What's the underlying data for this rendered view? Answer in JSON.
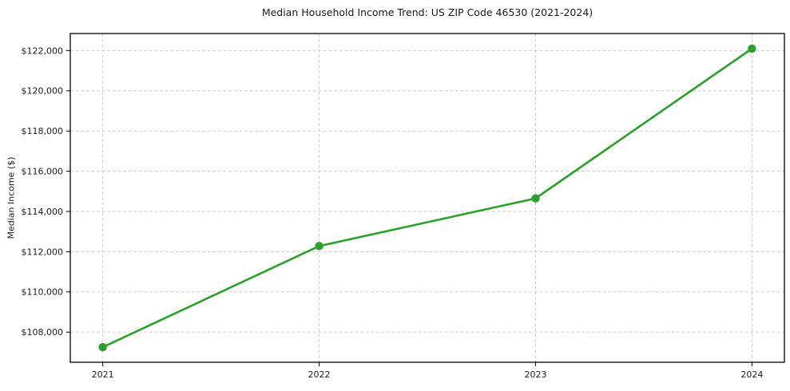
{
  "figure": {
    "background": "#ffffff"
  },
  "chart_data": {
    "type": "line",
    "title": "Median Household Income Trend: US ZIP Code 46530 (2021-2024)",
    "xlabel": "",
    "ylabel": "Median Income ($)",
    "x": [
      2021,
      2022,
      2023,
      2024
    ],
    "categories": [
      "2021",
      "2022",
      "2023",
      "2024"
    ],
    "values": [
      107250,
      112280,
      114650,
      122100
    ],
    "xlim": [
      2020.85,
      2024.15
    ],
    "ylim": [
      106500,
      122850
    ],
    "xticks": [
      {
        "value": 2021,
        "label": "2021"
      },
      {
        "value": 2022,
        "label": "2022"
      },
      {
        "value": 2023,
        "label": "2023"
      },
      {
        "value": 2024,
        "label": "2024"
      }
    ],
    "yticks": [
      {
        "value": 108000,
        "label": "$108,000"
      },
      {
        "value": 110000,
        "label": "$110,000"
      },
      {
        "value": 112000,
        "label": "$112,000"
      },
      {
        "value": 114000,
        "label": "$114,000"
      },
      {
        "value": 116000,
        "label": "$116,000"
      },
      {
        "value": 118000,
        "label": "$118,000"
      },
      {
        "value": 120000,
        "label": "$120,000"
      },
      {
        "value": 122000,
        "label": "$122,000"
      }
    ],
    "grid": true,
    "legend_position": "none",
    "marker": "circle",
    "colors": {
      "line": "#2ca02c",
      "marker": "#2ca02c",
      "grid": "#cccccc",
      "axis": "#000000",
      "text": "#1a1a1a"
    }
  }
}
